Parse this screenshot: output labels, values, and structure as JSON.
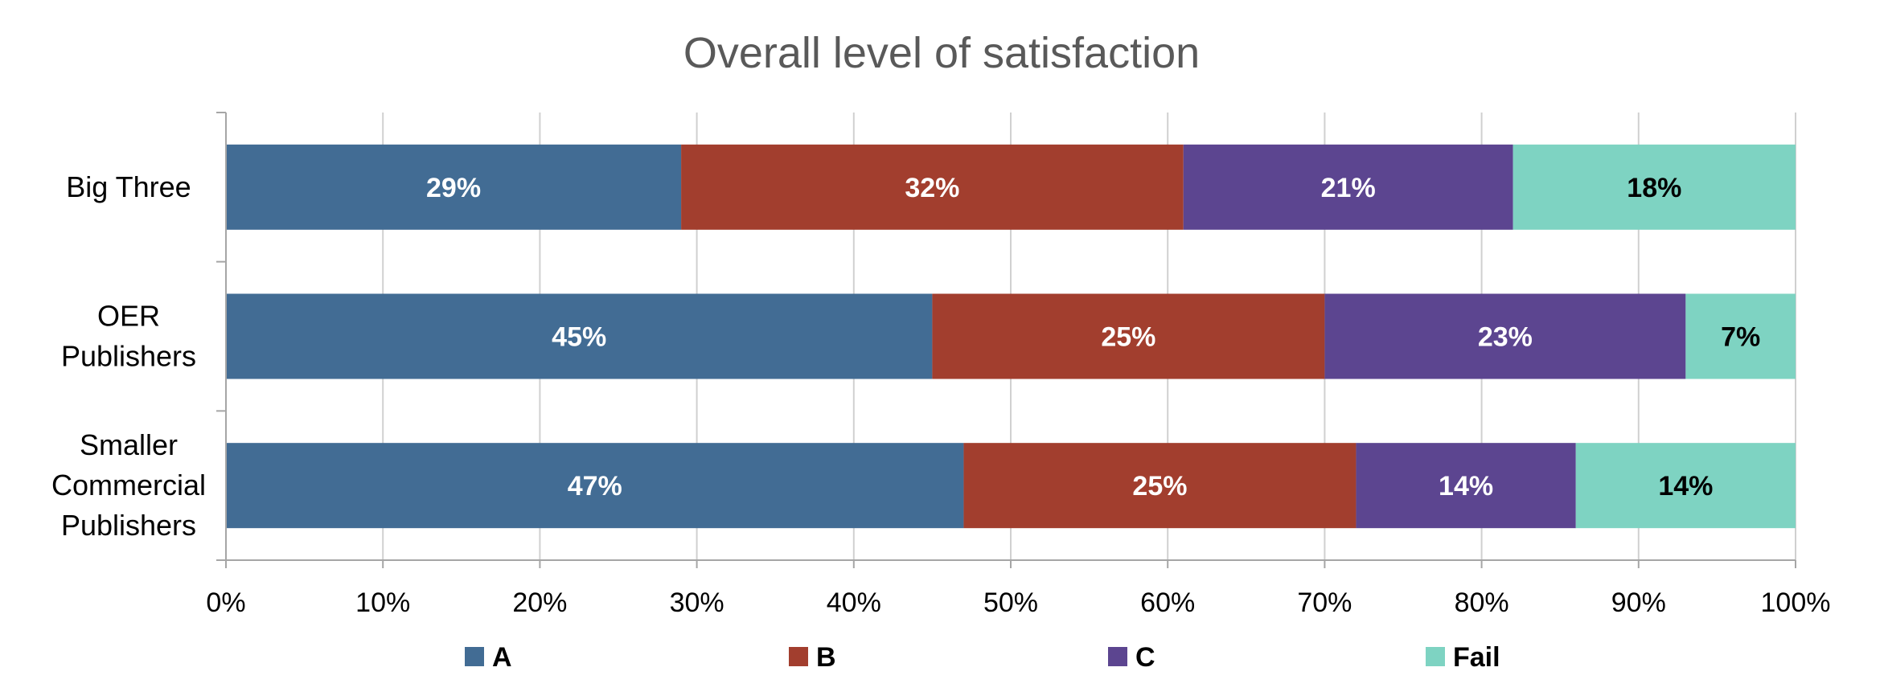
{
  "chart_data": {
    "type": "bar",
    "orientation": "horizontal",
    "stacked": "100%",
    "title": "Overall level of satisfaction",
    "categories": [
      "Big Three",
      "OER Publishers",
      "Smaller Commercial Publishers"
    ],
    "series": [
      {
        "name": "A",
        "color": "#426C94",
        "label_color": "#FFFFFF",
        "values": [
          29,
          45,
          47
        ],
        "labels": [
          "29%",
          "45%",
          "47%"
        ]
      },
      {
        "name": "B",
        "color": "#A23E2E",
        "label_color": "#FFFFFF",
        "values": [
          32,
          25,
          25
        ],
        "labels": [
          "32%",
          "25%",
          "25%"
        ]
      },
      {
        "name": "C",
        "color": "#5C4590",
        "label_color": "#FFFFFF",
        "values": [
          21,
          23,
          14
        ],
        "labels": [
          "21%",
          "23%",
          "14%"
        ]
      },
      {
        "name": "Fail",
        "color": "#7ED3C2",
        "label_color": "#000000",
        "values": [
          18,
          7,
          14
        ],
        "labels": [
          "18%",
          "7%",
          "14%"
        ]
      }
    ],
    "xlim": [
      0,
      100
    ],
    "xticks": [
      "0%",
      "10%",
      "20%",
      "30%",
      "40%",
      "50%",
      "60%",
      "70%",
      "80%",
      "90%",
      "100%"
    ],
    "grid": true,
    "legend_position": "bottom"
  }
}
